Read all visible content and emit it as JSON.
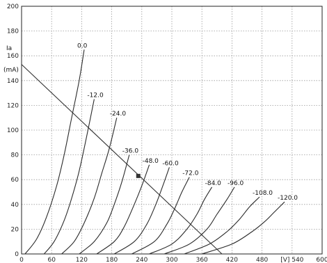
{
  "chart_data": {
    "type": "line",
    "title": "",
    "xlabel": "[V]",
    "ylabel": "Ia (mA)",
    "ylabel_top": "Ia",
    "ylabel_unit": "(mA)",
    "xlim": [
      0,
      600
    ],
    "ylim": [
      0,
      200
    ],
    "x_ticks": [
      "0",
      "60",
      "120",
      "180",
      "240",
      "300",
      "360",
      "420",
      "480",
      "[V] 540",
      "600"
    ],
    "y_ticks": [
      "0",
      "20",
      "40",
      "60",
      "80",
      "100",
      "120",
      "140",
      "160",
      "180",
      "200"
    ],
    "grid": true,
    "series": [
      {
        "name": "0.0",
        "points": [
          [
            7,
            0
          ],
          [
            30,
            12
          ],
          [
            50,
            30
          ],
          [
            70,
            55
          ],
          [
            85,
            80
          ],
          [
            100,
            110
          ],
          [
            115,
            140
          ],
          [
            125,
            165
          ]
        ]
      },
      {
        "name": "-12.0",
        "points": [
          [
            45,
            0
          ],
          [
            65,
            10
          ],
          [
            85,
            27
          ],
          [
            100,
            45
          ],
          [
            115,
            67
          ],
          [
            130,
            95
          ],
          [
            145,
            125
          ]
        ]
      },
      {
        "name": "-24.0",
        "points": [
          [
            80,
            0
          ],
          [
            105,
            10
          ],
          [
            125,
            25
          ],
          [
            145,
            45
          ],
          [
            160,
            65
          ],
          [
            175,
            85
          ],
          [
            190,
            110
          ]
        ]
      },
      {
        "name": "-36.0",
        "points": [
          [
            115,
            0
          ],
          [
            145,
            10
          ],
          [
            170,
            25
          ],
          [
            185,
            40
          ],
          [
            200,
            58
          ],
          [
            215,
            80
          ]
        ]
      },
      {
        "name": "-48.0",
        "points": [
          [
            150,
            0
          ],
          [
            185,
            10
          ],
          [
            205,
            22
          ],
          [
            225,
            40
          ],
          [
            240,
            55
          ],
          [
            255,
            72
          ]
        ]
      },
      {
        "name": "-60.0",
        "points": [
          [
            185,
            0
          ],
          [
            225,
            10
          ],
          [
            250,
            24
          ],
          [
            268,
            40
          ],
          [
            282,
            55
          ],
          [
            295,
            70
          ]
        ]
      },
      {
        "name": "-72.0",
        "points": [
          [
            220,
            0
          ],
          [
            265,
            10
          ],
          [
            290,
            24
          ],
          [
            305,
            36
          ],
          [
            320,
            50
          ],
          [
            335,
            62
          ]
        ]
      },
      {
        "name": "-84.0",
        "points": [
          [
            255,
            0
          ],
          [
            300,
            8
          ],
          [
            330,
            20
          ],
          [
            350,
            32
          ],
          [
            365,
            44
          ],
          [
            380,
            54
          ]
        ]
      },
      {
        "name": "-96.0",
        "points": [
          [
            285,
            0
          ],
          [
            335,
            8
          ],
          [
            370,
            20
          ],
          [
            390,
            32
          ],
          [
            410,
            44
          ],
          [
            425,
            54
          ]
        ]
      },
      {
        "name": "-108.0",
        "points": [
          [
            325,
            0
          ],
          [
            375,
            8
          ],
          [
            410,
            18
          ],
          [
            435,
            28
          ],
          [
            455,
            38
          ],
          [
            475,
            46
          ]
        ]
      },
      {
        "name": "-120.0",
        "points": [
          [
            360,
            0
          ],
          [
            420,
            8
          ],
          [
            460,
            18
          ],
          [
            485,
            26
          ],
          [
            505,
            34
          ],
          [
            525,
            42
          ]
        ]
      }
    ],
    "load_line": {
      "x": [
        0,
        400
      ],
      "y": [
        153,
        0
      ]
    },
    "operating_point": {
      "x": 233,
      "y": 63
    }
  }
}
